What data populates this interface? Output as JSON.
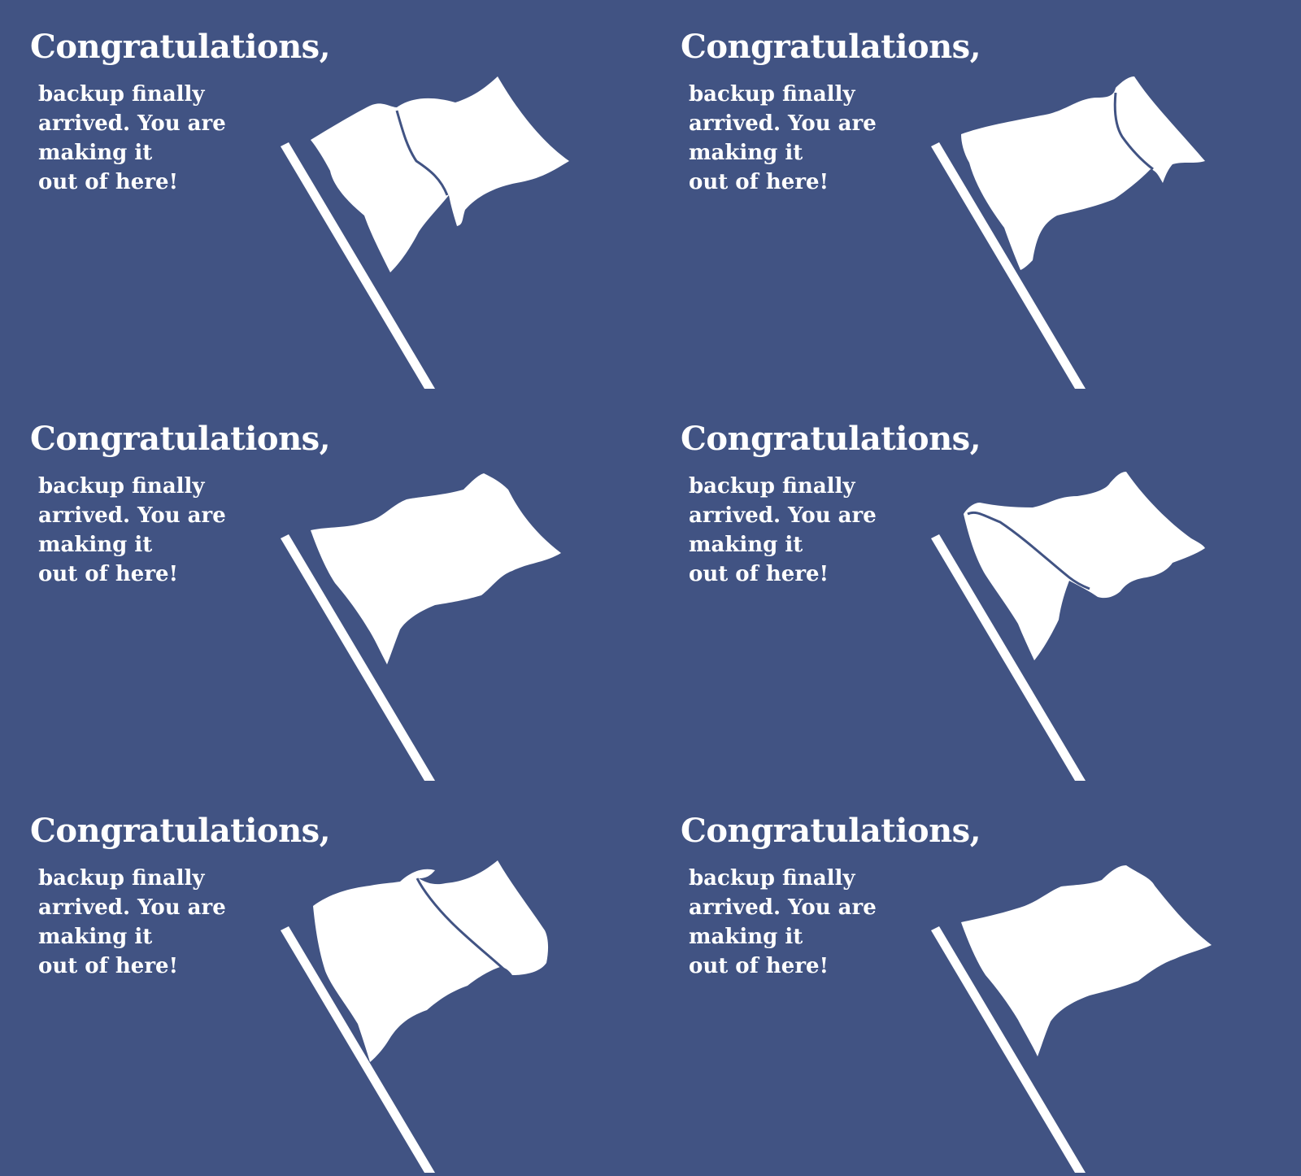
{
  "theme": {
    "background": "#415383",
    "foreground": "#ffffff"
  },
  "cards": [
    {
      "headline": "Congratulations,",
      "lines": [
        "backup finally",
        "arrived. You are",
        "making it",
        "out of here!"
      ],
      "flag_icon": "white-flag-icon"
    },
    {
      "headline": "Congratulations,",
      "lines": [
        "backup finally",
        "arrived. You are",
        "making it",
        "out of here!"
      ],
      "flag_icon": "white-flag-icon"
    },
    {
      "headline": "Congratulations,",
      "lines": [
        "backup finally",
        "arrived. You are",
        "making it",
        "out of here!"
      ],
      "flag_icon": "white-flag-icon"
    },
    {
      "headline": "Congratulations,",
      "lines": [
        "backup finally",
        "arrived. You are",
        "making it",
        "out of here!"
      ],
      "flag_icon": "white-flag-icon"
    },
    {
      "headline": "Congratulations,",
      "lines": [
        "backup finally",
        "arrived. You are",
        "making it",
        "out of here!"
      ],
      "flag_icon": "white-flag-icon"
    },
    {
      "headline": "Congratulations,",
      "lines": [
        "backup finally",
        "arrived. You are",
        "making it",
        "out of here!"
      ],
      "flag_icon": "white-flag-icon"
    }
  ]
}
